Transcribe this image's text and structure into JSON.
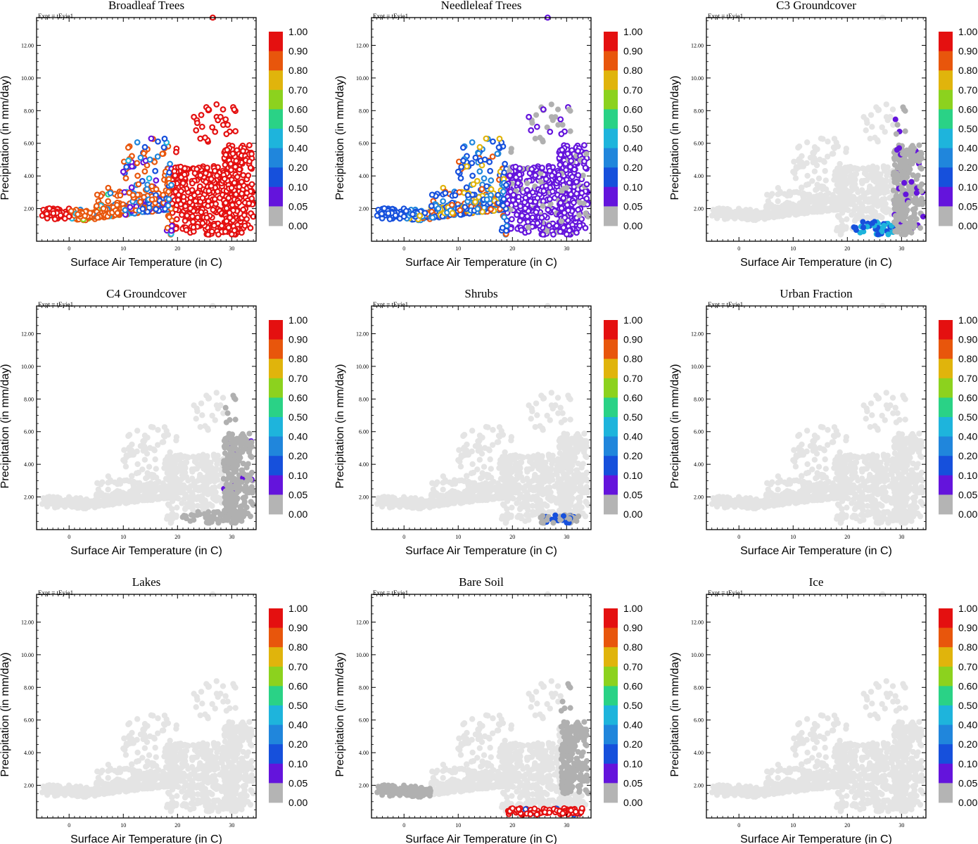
{
  "figure": {
    "experiment_label": "Expt = tEyie1",
    "xlabel": "Surface Air Temperature (in C)",
    "ylabel": "Precipitation (in mm/day)"
  },
  "colorbar": {
    "labels": [
      "1.00",
      "0.90",
      "0.80",
      "0.70",
      "0.60",
      "0.50",
      "0.40",
      "0.20",
      "0.10",
      "0.05",
      "0.00"
    ],
    "colors": [
      "#e41010",
      "#e8560c",
      "#e0b40c",
      "#8cd21e",
      "#2ad286",
      "#1eb4dc",
      "#2086dc",
      "#1650dc",
      "#6414dc",
      "#b4b4b4"
    ],
    "background_points_color": "#e4e4e4",
    "zero_points_color": "#b0b0b0"
  },
  "chart_data": [
    {
      "type": "scatter",
      "title": "Broadleaf Trees",
      "xlabel": "Surface Air Temperature (in C)",
      "ylabel": "Precipitation (in mm/day)",
      "xlim": [
        -6,
        34.5
      ],
      "ylim": [
        0,
        13.7
      ],
      "xticks": [
        "0",
        "10",
        "20",
        "30"
      ],
      "yticks": [
        "2.00",
        "4.00",
        "6.00",
        "8.00",
        "10.00",
        "12.00"
      ],
      "color_variable": "fraction",
      "pattern": "broadleaf"
    },
    {
      "type": "scatter",
      "title": "Needleleaf Trees",
      "xlabel": "Surface Air Temperature (in C)",
      "ylabel": "Precipitation (in mm/day)",
      "xlim": [
        -6,
        34.5
      ],
      "ylim": [
        0,
        13.7
      ],
      "xticks": [
        "0",
        "10",
        "20",
        "30"
      ],
      "yticks": [
        "2.00",
        "4.00",
        "6.00",
        "8.00",
        "10.00",
        "12.00"
      ],
      "color_variable": "fraction",
      "pattern": "needleleaf"
    },
    {
      "type": "scatter",
      "title": "C3 Groundcover",
      "xlabel": "Surface Air Temperature (in C)",
      "ylabel": "Precipitation (in mm/day)",
      "xlim": [
        -6,
        34.5
      ],
      "ylim": [
        0,
        13.7
      ],
      "xticks": [
        "0",
        "10",
        "20",
        "30"
      ],
      "yticks": [
        "2.00",
        "4.00",
        "6.00",
        "8.00",
        "10.00",
        "12.00"
      ],
      "color_variable": "fraction",
      "pattern": "c3"
    },
    {
      "type": "scatter",
      "title": "C4 Groundcover",
      "xlabel": "Surface Air Temperature (in C)",
      "ylabel": "Precipitation (in mm/day)",
      "xlim": [
        -6,
        34.5
      ],
      "ylim": [
        0,
        13.7
      ],
      "xticks": [
        "0",
        "10",
        "20",
        "30"
      ],
      "yticks": [
        "2.00",
        "4.00",
        "6.00",
        "8.00",
        "10.00",
        "12.00"
      ],
      "color_variable": "fraction",
      "pattern": "c4"
    },
    {
      "type": "scatter",
      "title": "Shrubs",
      "xlabel": "Surface Air Temperature (in C)",
      "ylabel": "Precipitation (in mm/day)",
      "xlim": [
        -6,
        34.5
      ],
      "ylim": [
        0,
        13.7
      ],
      "xticks": [
        "0",
        "10",
        "20",
        "30"
      ],
      "yticks": [
        "2.00",
        "4.00",
        "6.00",
        "8.00",
        "10.00",
        "12.00"
      ],
      "color_variable": "fraction",
      "pattern": "shrubs"
    },
    {
      "type": "scatter",
      "title": "Urban Fraction",
      "xlabel": "Surface Air Temperature (in C)",
      "ylabel": "Precipitation (in mm/day)",
      "xlim": [
        -6,
        34.5
      ],
      "ylim": [
        0,
        13.7
      ],
      "xticks": [
        "0",
        "10",
        "20",
        "30"
      ],
      "yticks": [
        "2.00",
        "4.00",
        "6.00",
        "8.00",
        "10.00",
        "12.00"
      ],
      "color_variable": "fraction",
      "pattern": "none"
    },
    {
      "type": "scatter",
      "title": "Lakes",
      "xlabel": "Surface Air Temperature (in C)",
      "ylabel": "Precipitation (in mm/day)",
      "xlim": [
        -6,
        34.5
      ],
      "ylim": [
        0,
        13.7
      ],
      "xticks": [
        "0",
        "10",
        "20",
        "30"
      ],
      "yticks": [
        "2.00",
        "4.00",
        "6.00",
        "8.00",
        "10.00",
        "12.00"
      ],
      "color_variable": "fraction",
      "pattern": "none"
    },
    {
      "type": "scatter",
      "title": "Bare Soil",
      "xlabel": "Surface Air Temperature (in C)",
      "ylabel": "Precipitation (in mm/day)",
      "xlim": [
        -6,
        34.5
      ],
      "ylim": [
        0,
        13.7
      ],
      "xticks": [
        "0",
        "10",
        "20",
        "30"
      ],
      "yticks": [
        "2.00",
        "4.00",
        "6.00",
        "8.00",
        "10.00",
        "12.00"
      ],
      "color_variable": "fraction",
      "pattern": "baresoil"
    },
    {
      "type": "scatter",
      "title": "Ice",
      "xlabel": "Surface Air Temperature (in C)",
      "ylabel": "Precipitation (in mm/day)",
      "xlim": [
        -6,
        34.5
      ],
      "ylim": [
        0,
        13.7
      ],
      "xticks": [
        "0",
        "10",
        "20",
        "30"
      ],
      "yticks": [
        "2.00",
        "4.00",
        "6.00",
        "8.00",
        "10.00",
        "12.00"
      ],
      "color_variable": "fraction",
      "pattern": "none"
    }
  ]
}
